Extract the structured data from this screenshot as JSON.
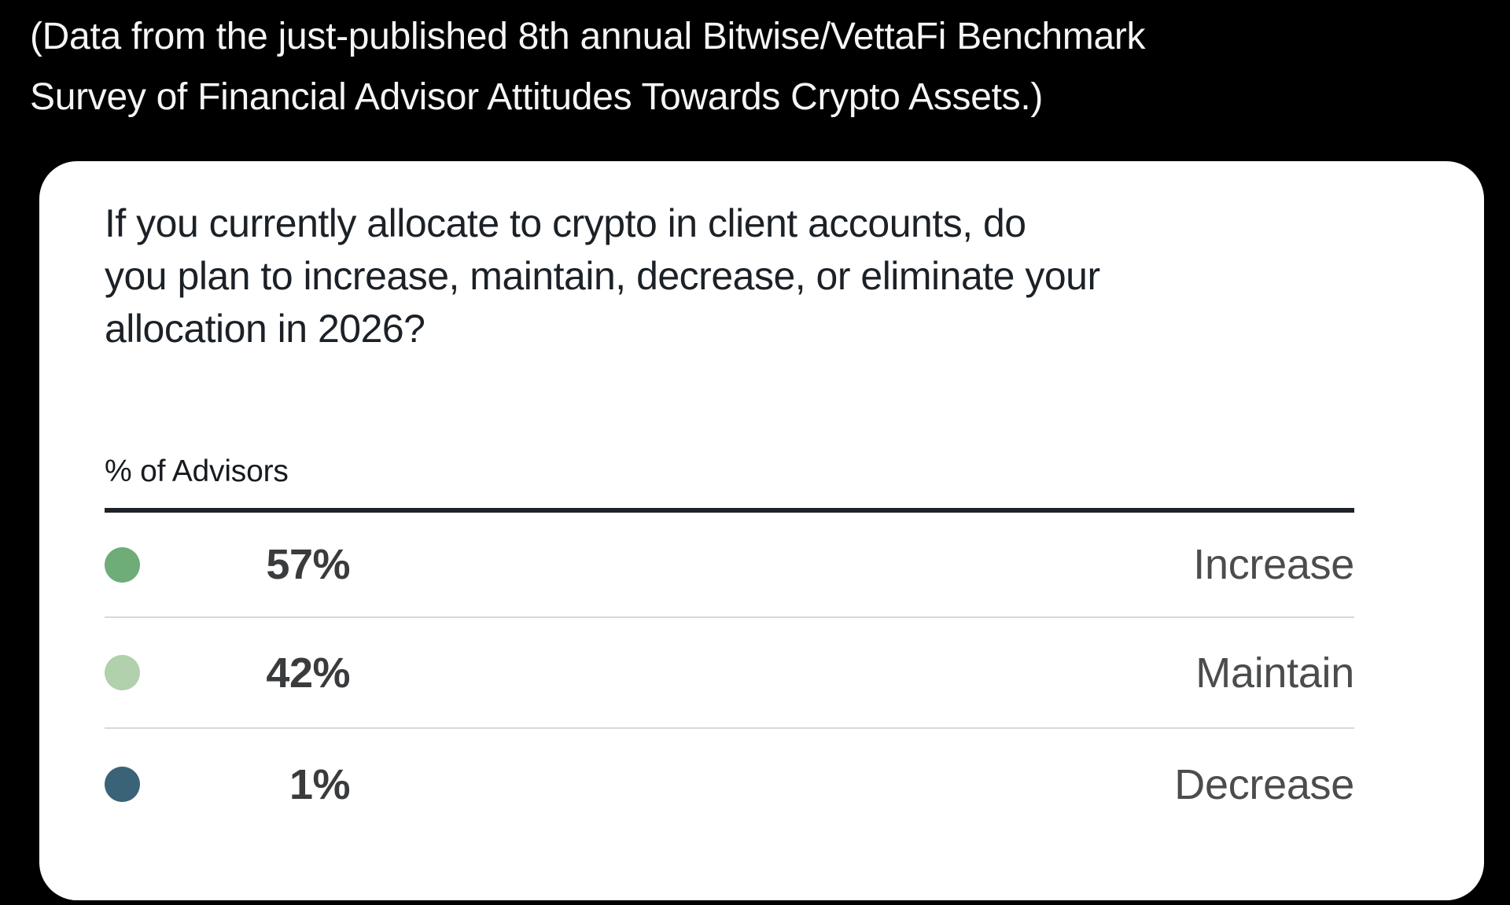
{
  "header": {
    "lines": [
      "(Data from the just-published 8th annual Bitwise/VettaFi Benchmark",
      "Survey of Financial Advisor Attitudes Towards Crypto Assets.)"
    ]
  },
  "card": {
    "title_lines": [
      "If you currently allocate to crypto in client accounts, do",
      "you plan to increase, maintain, decrease, or eliminate your",
      "allocation in 2026?"
    ],
    "axis_label": "% of Advisors",
    "rows": [
      {
        "value": "57%",
        "label": "Increase",
        "dot_color": "#6eac78"
      },
      {
        "value": "42%",
        "label": "Maintain",
        "dot_color": "#b0d1ab"
      },
      {
        "value": "1%",
        "label": "Decrease",
        "dot_color": "#3a6377"
      }
    ]
  },
  "colors": {
    "page_background": "#000000",
    "card_background": "#ffffff",
    "header_text": "#f5f5f5",
    "title_text": "#1b2127",
    "value_text": "#3a3b3d",
    "label_text": "#4b4c4e",
    "header_rule": "#1d2329",
    "row_divider": "#d9d9d9"
  },
  "chart_data": {
    "type": "bar",
    "title": "If you currently allocate to crypto in client accounts, do you plan to increase, maintain, decrease, or eliminate your allocation in 2026?",
    "ylabel": "% of Advisors",
    "xlabel": "",
    "categories": [
      "Increase",
      "Maintain",
      "Decrease"
    ],
    "values": [
      57,
      42,
      1
    ],
    "value_labels": [
      "57%",
      "42%",
      "1%"
    ],
    "series_colors": [
      "#6eac78",
      "#b0d1ab",
      "#3a6377"
    ],
    "ylim": [
      0,
      100
    ],
    "grid": false,
    "legend_position": "row-dots-left-labels-right",
    "annotation": "(Data from the just-published 8th annual Bitwise/VettaFi Benchmark Survey of Financial Advisor Attitudes Towards Crypto Assets.)"
  }
}
